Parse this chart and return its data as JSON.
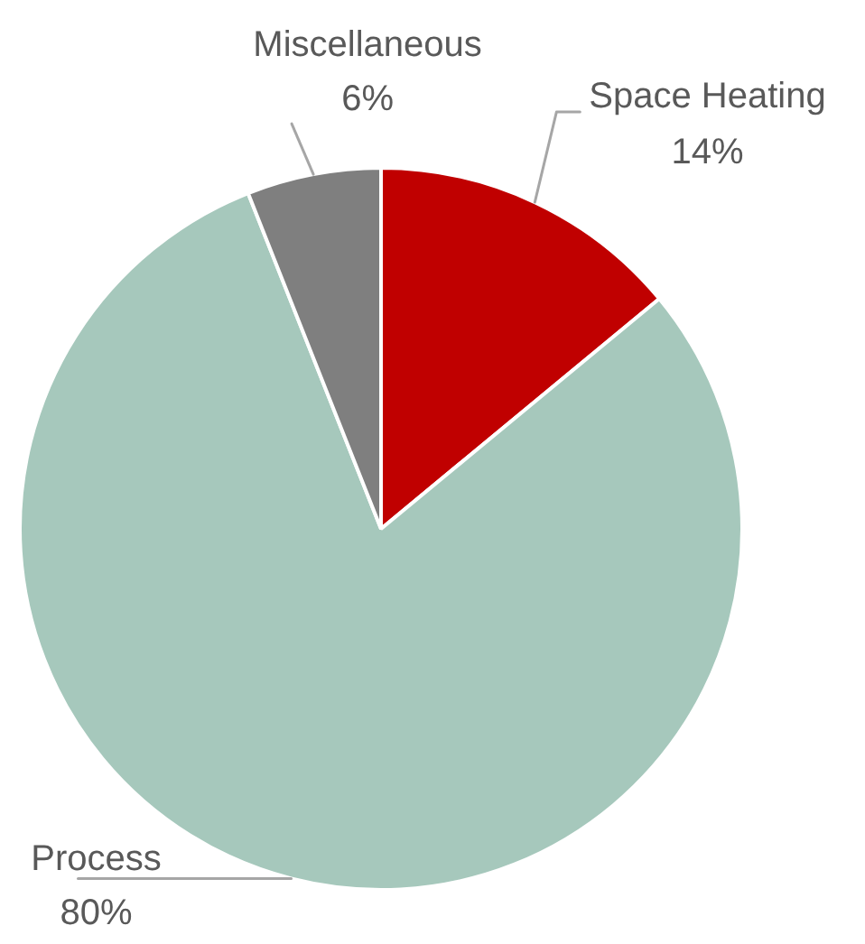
{
  "chart_data": {
    "type": "pie",
    "categories": [
      "Space Heating",
      "Process",
      "Miscellaneous"
    ],
    "values": [
      14,
      80,
      6
    ],
    "colors": [
      "#c00000",
      "#a6c8bc",
      "#7f7f7f"
    ],
    "value_labels": [
      "14%",
      "80%",
      "6%"
    ]
  }
}
